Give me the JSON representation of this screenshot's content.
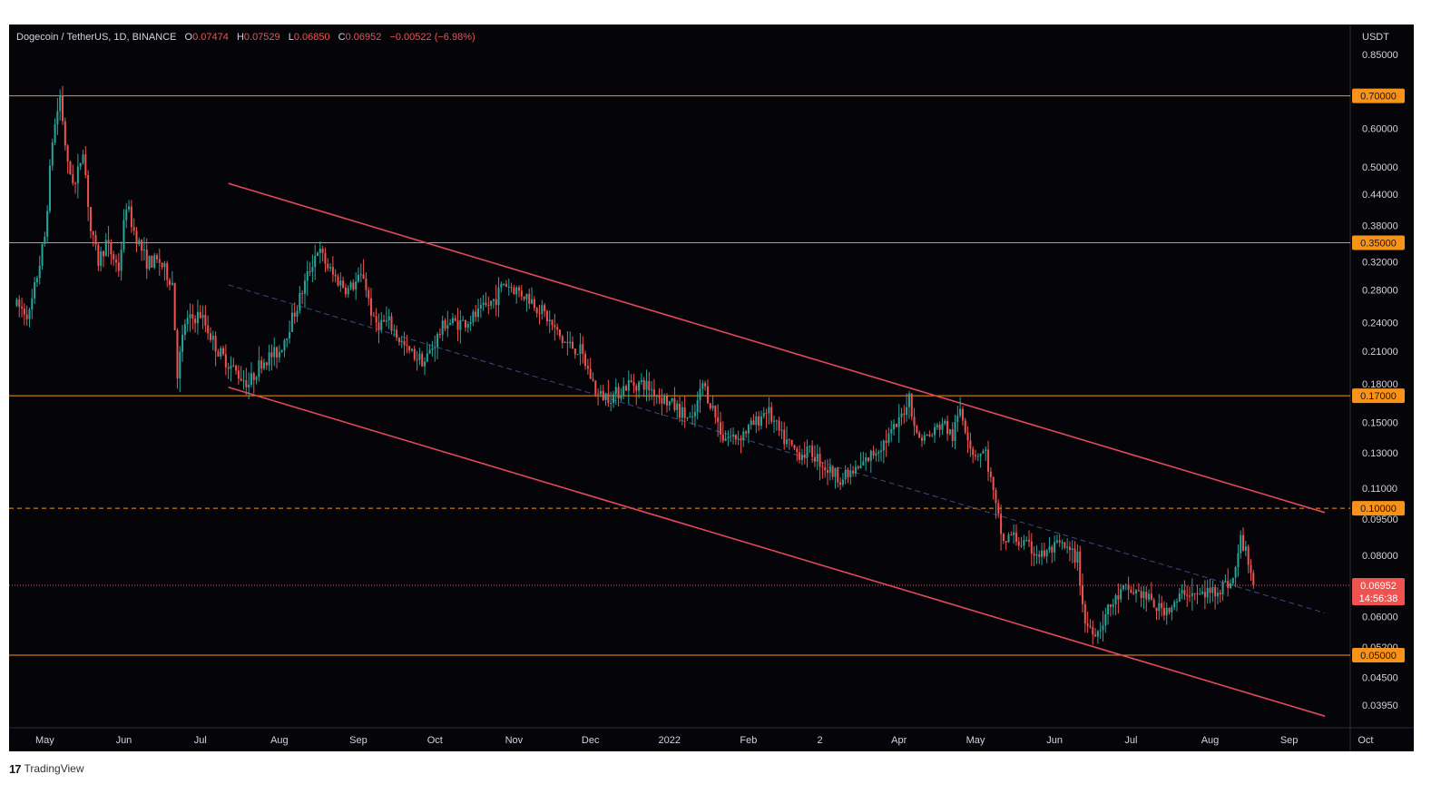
{
  "header": {
    "symbol": "Dogecoin / TetherUS, 1D, BINANCE",
    "open_label": "O",
    "open": "0.07474",
    "high_label": "H",
    "high": "0.07529",
    "low_label": "L",
    "low": "0.06850",
    "close_label": "C",
    "close": "0.06952",
    "change": "−0.00522 (−6.98%)"
  },
  "footer": {
    "brand": "TradingView"
  },
  "colors": {
    "background": "#050409",
    "up": "#26a69a",
    "down": "#ef5350",
    "level": "#f7931a",
    "channel": "#e04a5a",
    "midline": "#3d4a80",
    "axis_text": "#d1d4dc"
  },
  "chart_data": {
    "type": "candlestick",
    "ylabel": "USDT",
    "y_scale": "log",
    "ylim": [
      0.0355,
      0.98
    ],
    "x_ticks": [
      "May",
      "Jun",
      "Jul",
      "Aug",
      "Sep",
      "Oct",
      "Nov",
      "Dec",
      "2022",
      "Feb",
      "2",
      "Apr",
      "May",
      "Jun",
      "Jul",
      "Aug",
      "Sep",
      "Oct"
    ],
    "y_ticks": [
      "0.85000",
      "0.60000",
      "0.50000",
      "0.44000",
      "0.38000",
      "0.32000",
      "0.28000",
      "0.24000",
      "0.21000",
      "0.18000",
      "0.15000",
      "0.13000",
      "0.11000",
      "0.09500",
      "0.08000",
      "0.06000",
      "0.05200",
      "0.04500",
      "0.03950"
    ],
    "horizontal_levels": [
      {
        "value": 0.7,
        "label": "0.70000",
        "style": "solid"
      },
      {
        "value": 0.35,
        "label": "0.35000",
        "style": "solid"
      },
      {
        "value": 0.17,
        "label": "0.17000",
        "style": "solid"
      },
      {
        "value": 0.1,
        "label": "0.10000",
        "style": "dashed"
      },
      {
        "value": 0.05,
        "label": "0.05000",
        "style": "solid"
      }
    ],
    "last_price": {
      "value": 0.06952,
      "label": "0.06952",
      "countdown": "14:56:38"
    },
    "channel": {
      "upper": {
        "from": [
          "2021-07-12",
          0.463
        ],
        "to": [
          "2022-09-15",
          0.098
        ]
      },
      "lower": {
        "from": [
          "2021-07-12",
          0.177
        ],
        "to": [
          "2022-09-15",
          0.0375
        ]
      },
      "mid": {
        "from": [
          "2021-07-12",
          0.287
        ],
        "to": [
          "2022-09-15",
          0.061
        ]
      }
    },
    "closes_anchor": [
      [
        "2021-04-20",
        0.26
      ],
      [
        "2021-04-25",
        0.25
      ],
      [
        "2021-05-01",
        0.36
      ],
      [
        "2021-05-04",
        0.57
      ],
      [
        "2021-05-07",
        0.7
      ],
      [
        "2021-05-10",
        0.5
      ],
      [
        "2021-05-13",
        0.46
      ],
      [
        "2021-05-16",
        0.55
      ],
      [
        "2021-05-19",
        0.37
      ],
      [
        "2021-05-22",
        0.32
      ],
      [
        "2021-05-25",
        0.35
      ],
      [
        "2021-05-30",
        0.31
      ],
      [
        "2021-06-02",
        0.42
      ],
      [
        "2021-06-05",
        0.37
      ],
      [
        "2021-06-10",
        0.32
      ],
      [
        "2021-06-15",
        0.32
      ],
      [
        "2021-06-20",
        0.29
      ],
      [
        "2021-06-22",
        0.19
      ],
      [
        "2021-06-25",
        0.24
      ],
      [
        "2021-07-01",
        0.25
      ],
      [
        "2021-07-08",
        0.21
      ],
      [
        "2021-07-15",
        0.19
      ],
      [
        "2021-07-20",
        0.18
      ],
      [
        "2021-07-25",
        0.2
      ],
      [
        "2021-08-01",
        0.21
      ],
      [
        "2021-08-08",
        0.26
      ],
      [
        "2021-08-13",
        0.31
      ],
      [
        "2021-08-16",
        0.34
      ],
      [
        "2021-08-22",
        0.3
      ],
      [
        "2021-08-28",
        0.28
      ],
      [
        "2021-09-03",
        0.3
      ],
      [
        "2021-09-07",
        0.24
      ],
      [
        "2021-09-13",
        0.24
      ],
      [
        "2021-09-20",
        0.21
      ],
      [
        "2021-09-27",
        0.2
      ],
      [
        "2021-10-05",
        0.24
      ],
      [
        "2021-10-12",
        0.24
      ],
      [
        "2021-10-18",
        0.25
      ],
      [
        "2021-10-25",
        0.27
      ],
      [
        "2021-10-28",
        0.29
      ],
      [
        "2021-11-02",
        0.28
      ],
      [
        "2021-11-07",
        0.27
      ],
      [
        "2021-11-13",
        0.25
      ],
      [
        "2021-11-20",
        0.22
      ],
      [
        "2021-11-27",
        0.21
      ],
      [
        "2021-12-04",
        0.17
      ],
      [
        "2021-12-10",
        0.17
      ],
      [
        "2021-12-16",
        0.18
      ],
      [
        "2021-12-22",
        0.18
      ],
      [
        "2021-12-28",
        0.17
      ],
      [
        "2022-01-04",
        0.16
      ],
      [
        "2022-01-10",
        0.15
      ],
      [
        "2022-01-14",
        0.18
      ],
      [
        "2022-01-18",
        0.16
      ],
      [
        "2022-01-22",
        0.14
      ],
      [
        "2022-01-28",
        0.14
      ],
      [
        "2022-02-04",
        0.15
      ],
      [
        "2022-02-08",
        0.16
      ],
      [
        "2022-02-14",
        0.14
      ],
      [
        "2022-02-20",
        0.13
      ],
      [
        "2022-02-26",
        0.13
      ],
      [
        "2022-03-04",
        0.12
      ],
      [
        "2022-03-10",
        0.115
      ],
      [
        "2022-03-16",
        0.12
      ],
      [
        "2022-03-22",
        0.13
      ],
      [
        "2022-03-28",
        0.14
      ],
      [
        "2022-04-01",
        0.15
      ],
      [
        "2022-04-05",
        0.17
      ],
      [
        "2022-04-08",
        0.14
      ],
      [
        "2022-04-13",
        0.14
      ],
      [
        "2022-04-18",
        0.15
      ],
      [
        "2022-04-22",
        0.14
      ],
      [
        "2022-04-25",
        0.16
      ],
      [
        "2022-04-30",
        0.13
      ],
      [
        "2022-05-05",
        0.13
      ],
      [
        "2022-05-09",
        0.1
      ],
      [
        "2022-05-12",
        0.085
      ],
      [
        "2022-05-15",
        0.088
      ],
      [
        "2022-05-20",
        0.084
      ],
      [
        "2022-05-27",
        0.08
      ],
      [
        "2022-06-03",
        0.084
      ],
      [
        "2022-06-10",
        0.079
      ],
      [
        "2022-06-13",
        0.058
      ],
      [
        "2022-06-18",
        0.056
      ],
      [
        "2022-06-22",
        0.062
      ],
      [
        "2022-06-28",
        0.068
      ],
      [
        "2022-07-05",
        0.067
      ],
      [
        "2022-07-12",
        0.062
      ],
      [
        "2022-07-18",
        0.063
      ],
      [
        "2022-07-22",
        0.068
      ],
      [
        "2022-07-27",
        0.066
      ],
      [
        "2022-08-03",
        0.068
      ],
      [
        "2022-08-10",
        0.071
      ],
      [
        "2022-08-13",
        0.086
      ],
      [
        "2022-08-16",
        0.079
      ],
      [
        "2022-08-18",
        0.0695
      ]
    ]
  }
}
